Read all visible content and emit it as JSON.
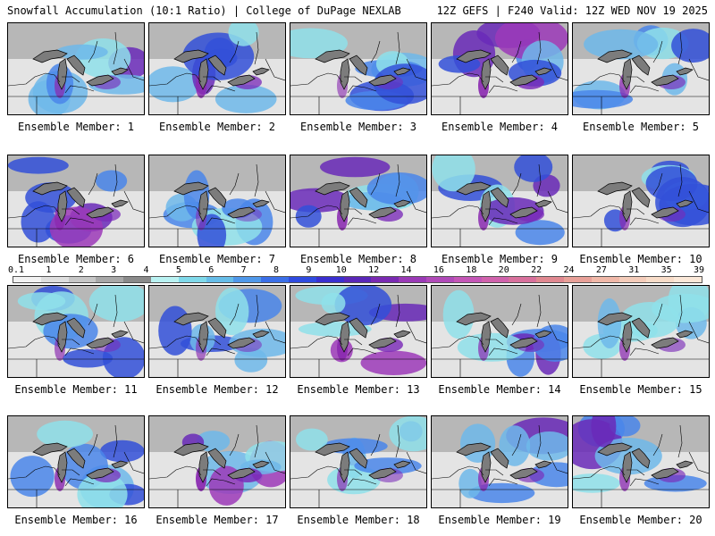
{
  "header": {
    "left": "Snowfall Accumulation (10:1 Ratio) | College of DuPage NEXLAB",
    "right": "12Z GEFS | F240 Valid: 12Z WED NOV 19 2025"
  },
  "members": [
    {
      "label": "Ensemble Member: 1",
      "intensity": 0.55
    },
    {
      "label": "Ensemble Member: 2",
      "intensity": 0.75
    },
    {
      "label": "Ensemble Member: 3",
      "intensity": 0.35
    },
    {
      "label": "Ensemble Member: 4",
      "intensity": 0.85
    },
    {
      "label": "Ensemble Member: 5",
      "intensity": 0.6
    },
    {
      "label": "Ensemble Member: 6",
      "intensity": 0.7
    },
    {
      "label": "Ensemble Member: 7",
      "intensity": 0.3
    },
    {
      "label": "Ensemble Member: 8",
      "intensity": 0.8
    },
    {
      "label": "Ensemble Member: 9",
      "intensity": 0.75
    },
    {
      "label": "Ensemble Member: 10",
      "intensity": 0.5
    },
    {
      "label": "Ensemble Member: 11",
      "intensity": 0.45
    },
    {
      "label": "Ensemble Member: 12",
      "intensity": 0.4
    },
    {
      "label": "Ensemble Member: 13",
      "intensity": 0.85
    },
    {
      "label": "Ensemble Member: 14",
      "intensity": 0.5
    },
    {
      "label": "Ensemble Member: 15",
      "intensity": 0.55
    },
    {
      "label": "Ensemble Member: 16",
      "intensity": 0.7
    },
    {
      "label": "Ensemble Member: 17",
      "intensity": 0.9
    },
    {
      "label": "Ensemble Member: 18",
      "intensity": 0.45
    },
    {
      "label": "Ensemble Member: 19",
      "intensity": 0.6
    },
    {
      "label": "Ensemble Member: 20",
      "intensity": 0.6
    }
  ],
  "colorbar": {
    "ticks": [
      "0.1",
      "1",
      "2",
      "3",
      "4",
      "5",
      "6",
      "7",
      "8",
      "9",
      "10",
      "12",
      "14",
      "16",
      "18",
      "20",
      "22",
      "24",
      "27",
      "31",
      "35",
      "39"
    ],
    "colors": [
      "#f2f2f2",
      "#dedede",
      "#c6c6c6",
      "#a8a8a8",
      "#8a8a8a",
      "#b9f2f2",
      "#7fd9ea",
      "#66bde8",
      "#4f98ea",
      "#3b6fe8",
      "#2f4be0",
      "#3a2fd0",
      "#5a27b8",
      "#7a2ab2",
      "#9a3ab6",
      "#b04ab8",
      "#c456b6",
      "#d062ac",
      "#d8709c",
      "#e08890",
      "#e8a098",
      "#f0b8a8",
      "#f4ccba",
      "#f8dcc8",
      "#fbe8d8"
    ]
  }
}
